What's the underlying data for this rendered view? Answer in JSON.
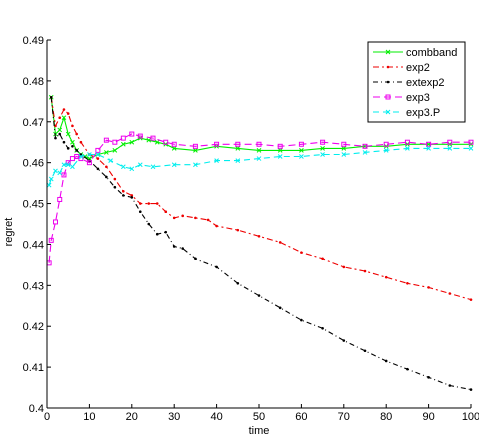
{
  "chart_data": {
    "type": "line",
    "xlabel": "time",
    "ylabel": "regret",
    "xlim": [
      0,
      100
    ],
    "ylim": [
      0.4,
      0.49
    ],
    "x_ticks": [
      "0",
      "10",
      "20",
      "30",
      "40",
      "50",
      "60",
      "70",
      "80",
      "90",
      "100"
    ],
    "y_ticks": [
      "0.4",
      "0.41",
      "0.42",
      "0.43",
      "0.44",
      "0.45",
      "0.46",
      "0.47",
      "0.48",
      "0.49"
    ],
    "legend_position": "top-right",
    "grid": false,
    "series": [
      {
        "name": "combband",
        "color": "#00ee00",
        "dash": "",
        "marker": "x",
        "points": [
          [
            1,
            0.476
          ],
          [
            2,
            0.467
          ],
          [
            3,
            0.468
          ],
          [
            4,
            0.471
          ],
          [
            5,
            0.467
          ],
          [
            6,
            0.465
          ],
          [
            7,
            0.463
          ],
          [
            8,
            0.462
          ],
          [
            9,
            0.4615
          ],
          [
            10,
            0.461
          ],
          [
            12,
            0.462
          ],
          [
            14,
            0.4625
          ],
          [
            16,
            0.463
          ],
          [
            18,
            0.4645
          ],
          [
            20,
            0.465
          ],
          [
            22,
            0.466
          ],
          [
            24,
            0.4655
          ],
          [
            26,
            0.465
          ],
          [
            28,
            0.4645
          ],
          [
            30,
            0.4635
          ],
          [
            35,
            0.463
          ],
          [
            40,
            0.464
          ],
          [
            45,
            0.4635
          ],
          [
            50,
            0.463
          ],
          [
            55,
            0.463
          ],
          [
            60,
            0.463
          ],
          [
            65,
            0.4635
          ],
          [
            70,
            0.4635
          ],
          [
            75,
            0.464
          ],
          [
            80,
            0.464
          ],
          [
            85,
            0.4645
          ],
          [
            90,
            0.4645
          ],
          [
            95,
            0.4645
          ],
          [
            100,
            0.4645
          ]
        ]
      },
      {
        "name": "exp2",
        "color": "#ee0000",
        "dash": "6,3,2,3",
        "marker": "dot",
        "points": [
          [
            1,
            0.476
          ],
          [
            2,
            0.469
          ],
          [
            3,
            0.471
          ],
          [
            4,
            0.473
          ],
          [
            5,
            0.472
          ],
          [
            6,
            0.469
          ],
          [
            7,
            0.467
          ],
          [
            8,
            0.465
          ],
          [
            10,
            0.462
          ],
          [
            12,
            0.461
          ],
          [
            14,
            0.459
          ],
          [
            16,
            0.456
          ],
          [
            18,
            0.453
          ],
          [
            20,
            0.452
          ],
          [
            22,
            0.45
          ],
          [
            24,
            0.45
          ],
          [
            26,
            0.45
          ],
          [
            28,
            0.448
          ],
          [
            30,
            0.4465
          ],
          [
            32,
            0.447
          ],
          [
            35,
            0.4465
          ],
          [
            38,
            0.446
          ],
          [
            40,
            0.4445
          ],
          [
            45,
            0.4435
          ],
          [
            50,
            0.442
          ],
          [
            55,
            0.4405
          ],
          [
            60,
            0.438
          ],
          [
            65,
            0.4365
          ],
          [
            70,
            0.4345
          ],
          [
            75,
            0.4335
          ],
          [
            80,
            0.432
          ],
          [
            85,
            0.4305
          ],
          [
            90,
            0.4295
          ],
          [
            95,
            0.428
          ],
          [
            100,
            0.4265
          ]
        ]
      },
      {
        "name": "extexp2",
        "color": "#000000",
        "dash": "5,3,1,3",
        "marker": "dot",
        "points": [
          [
            1,
            0.476
          ],
          [
            2,
            0.466
          ],
          [
            3,
            0.467
          ],
          [
            4,
            0.465
          ],
          [
            5,
            0.4635
          ],
          [
            6,
            0.464
          ],
          [
            7,
            0.463
          ],
          [
            8,
            0.462
          ],
          [
            10,
            0.4605
          ],
          [
            12,
            0.4585
          ],
          [
            14,
            0.4565
          ],
          [
            16,
            0.454
          ],
          [
            18,
            0.452
          ],
          [
            20,
            0.4515
          ],
          [
            22,
            0.448
          ],
          [
            24,
            0.445
          ],
          [
            26,
            0.4425
          ],
          [
            28,
            0.443
          ],
          [
            30,
            0.4395
          ],
          [
            32,
            0.439
          ],
          [
            35,
            0.4365
          ],
          [
            40,
            0.4345
          ],
          [
            45,
            0.4305
          ],
          [
            50,
            0.4275
          ],
          [
            55,
            0.4245
          ],
          [
            60,
            0.4215
          ],
          [
            65,
            0.4195
          ],
          [
            70,
            0.4165
          ],
          [
            75,
            0.414
          ],
          [
            80,
            0.4115
          ],
          [
            85,
            0.4095
          ],
          [
            90,
            0.4075
          ],
          [
            95,
            0.4055
          ],
          [
            100,
            0.4045
          ]
        ]
      },
      {
        "name": "exp3",
        "color": "#ee00ee",
        "dash": "7,4",
        "marker": "square",
        "points": [
          [
            0.5,
            0.4355
          ],
          [
            1,
            0.441
          ],
          [
            2,
            0.4455
          ],
          [
            3,
            0.451
          ],
          [
            4,
            0.457
          ],
          [
            5,
            0.46
          ],
          [
            6,
            0.461
          ],
          [
            7,
            0.4615
          ],
          [
            8,
            0.461
          ],
          [
            10,
            0.46
          ],
          [
            12,
            0.463
          ],
          [
            14,
            0.4655
          ],
          [
            16,
            0.465
          ],
          [
            18,
            0.466
          ],
          [
            20,
            0.467
          ],
          [
            22,
            0.4665
          ],
          [
            25,
            0.466
          ],
          [
            28,
            0.465
          ],
          [
            30,
            0.4645
          ],
          [
            35,
            0.464
          ],
          [
            40,
            0.4645
          ],
          [
            45,
            0.4645
          ],
          [
            50,
            0.4645
          ],
          [
            55,
            0.464
          ],
          [
            60,
            0.4645
          ],
          [
            65,
            0.465
          ],
          [
            70,
            0.4645
          ],
          [
            75,
            0.464
          ],
          [
            80,
            0.4645
          ],
          [
            85,
            0.465
          ],
          [
            90,
            0.4645
          ],
          [
            95,
            0.465
          ],
          [
            100,
            0.465
          ]
        ]
      },
      {
        "name": "exp3.P",
        "color": "#00eeee",
        "dash": "6,4",
        "marker": "x",
        "points": [
          [
            0.5,
            0.4545
          ],
          [
            1,
            0.456
          ],
          [
            2,
            0.458
          ],
          [
            3,
            0.4575
          ],
          [
            4,
            0.4595
          ],
          [
            5,
            0.4595
          ],
          [
            6,
            0.459
          ],
          [
            8,
            0.4615
          ],
          [
            10,
            0.462
          ],
          [
            12,
            0.462
          ],
          [
            15,
            0.4605
          ],
          [
            18,
            0.459
          ],
          [
            20,
            0.4585
          ],
          [
            22,
            0.4595
          ],
          [
            25,
            0.459
          ],
          [
            30,
            0.4595
          ],
          [
            35,
            0.4595
          ],
          [
            40,
            0.4605
          ],
          [
            45,
            0.4605
          ],
          [
            50,
            0.461
          ],
          [
            55,
            0.4615
          ],
          [
            60,
            0.4615
          ],
          [
            65,
            0.462
          ],
          [
            70,
            0.462
          ],
          [
            75,
            0.4625
          ],
          [
            80,
            0.463
          ],
          [
            85,
            0.4635
          ],
          [
            90,
            0.4635
          ],
          [
            95,
            0.4635
          ],
          [
            100,
            0.4635
          ]
        ]
      }
    ]
  }
}
